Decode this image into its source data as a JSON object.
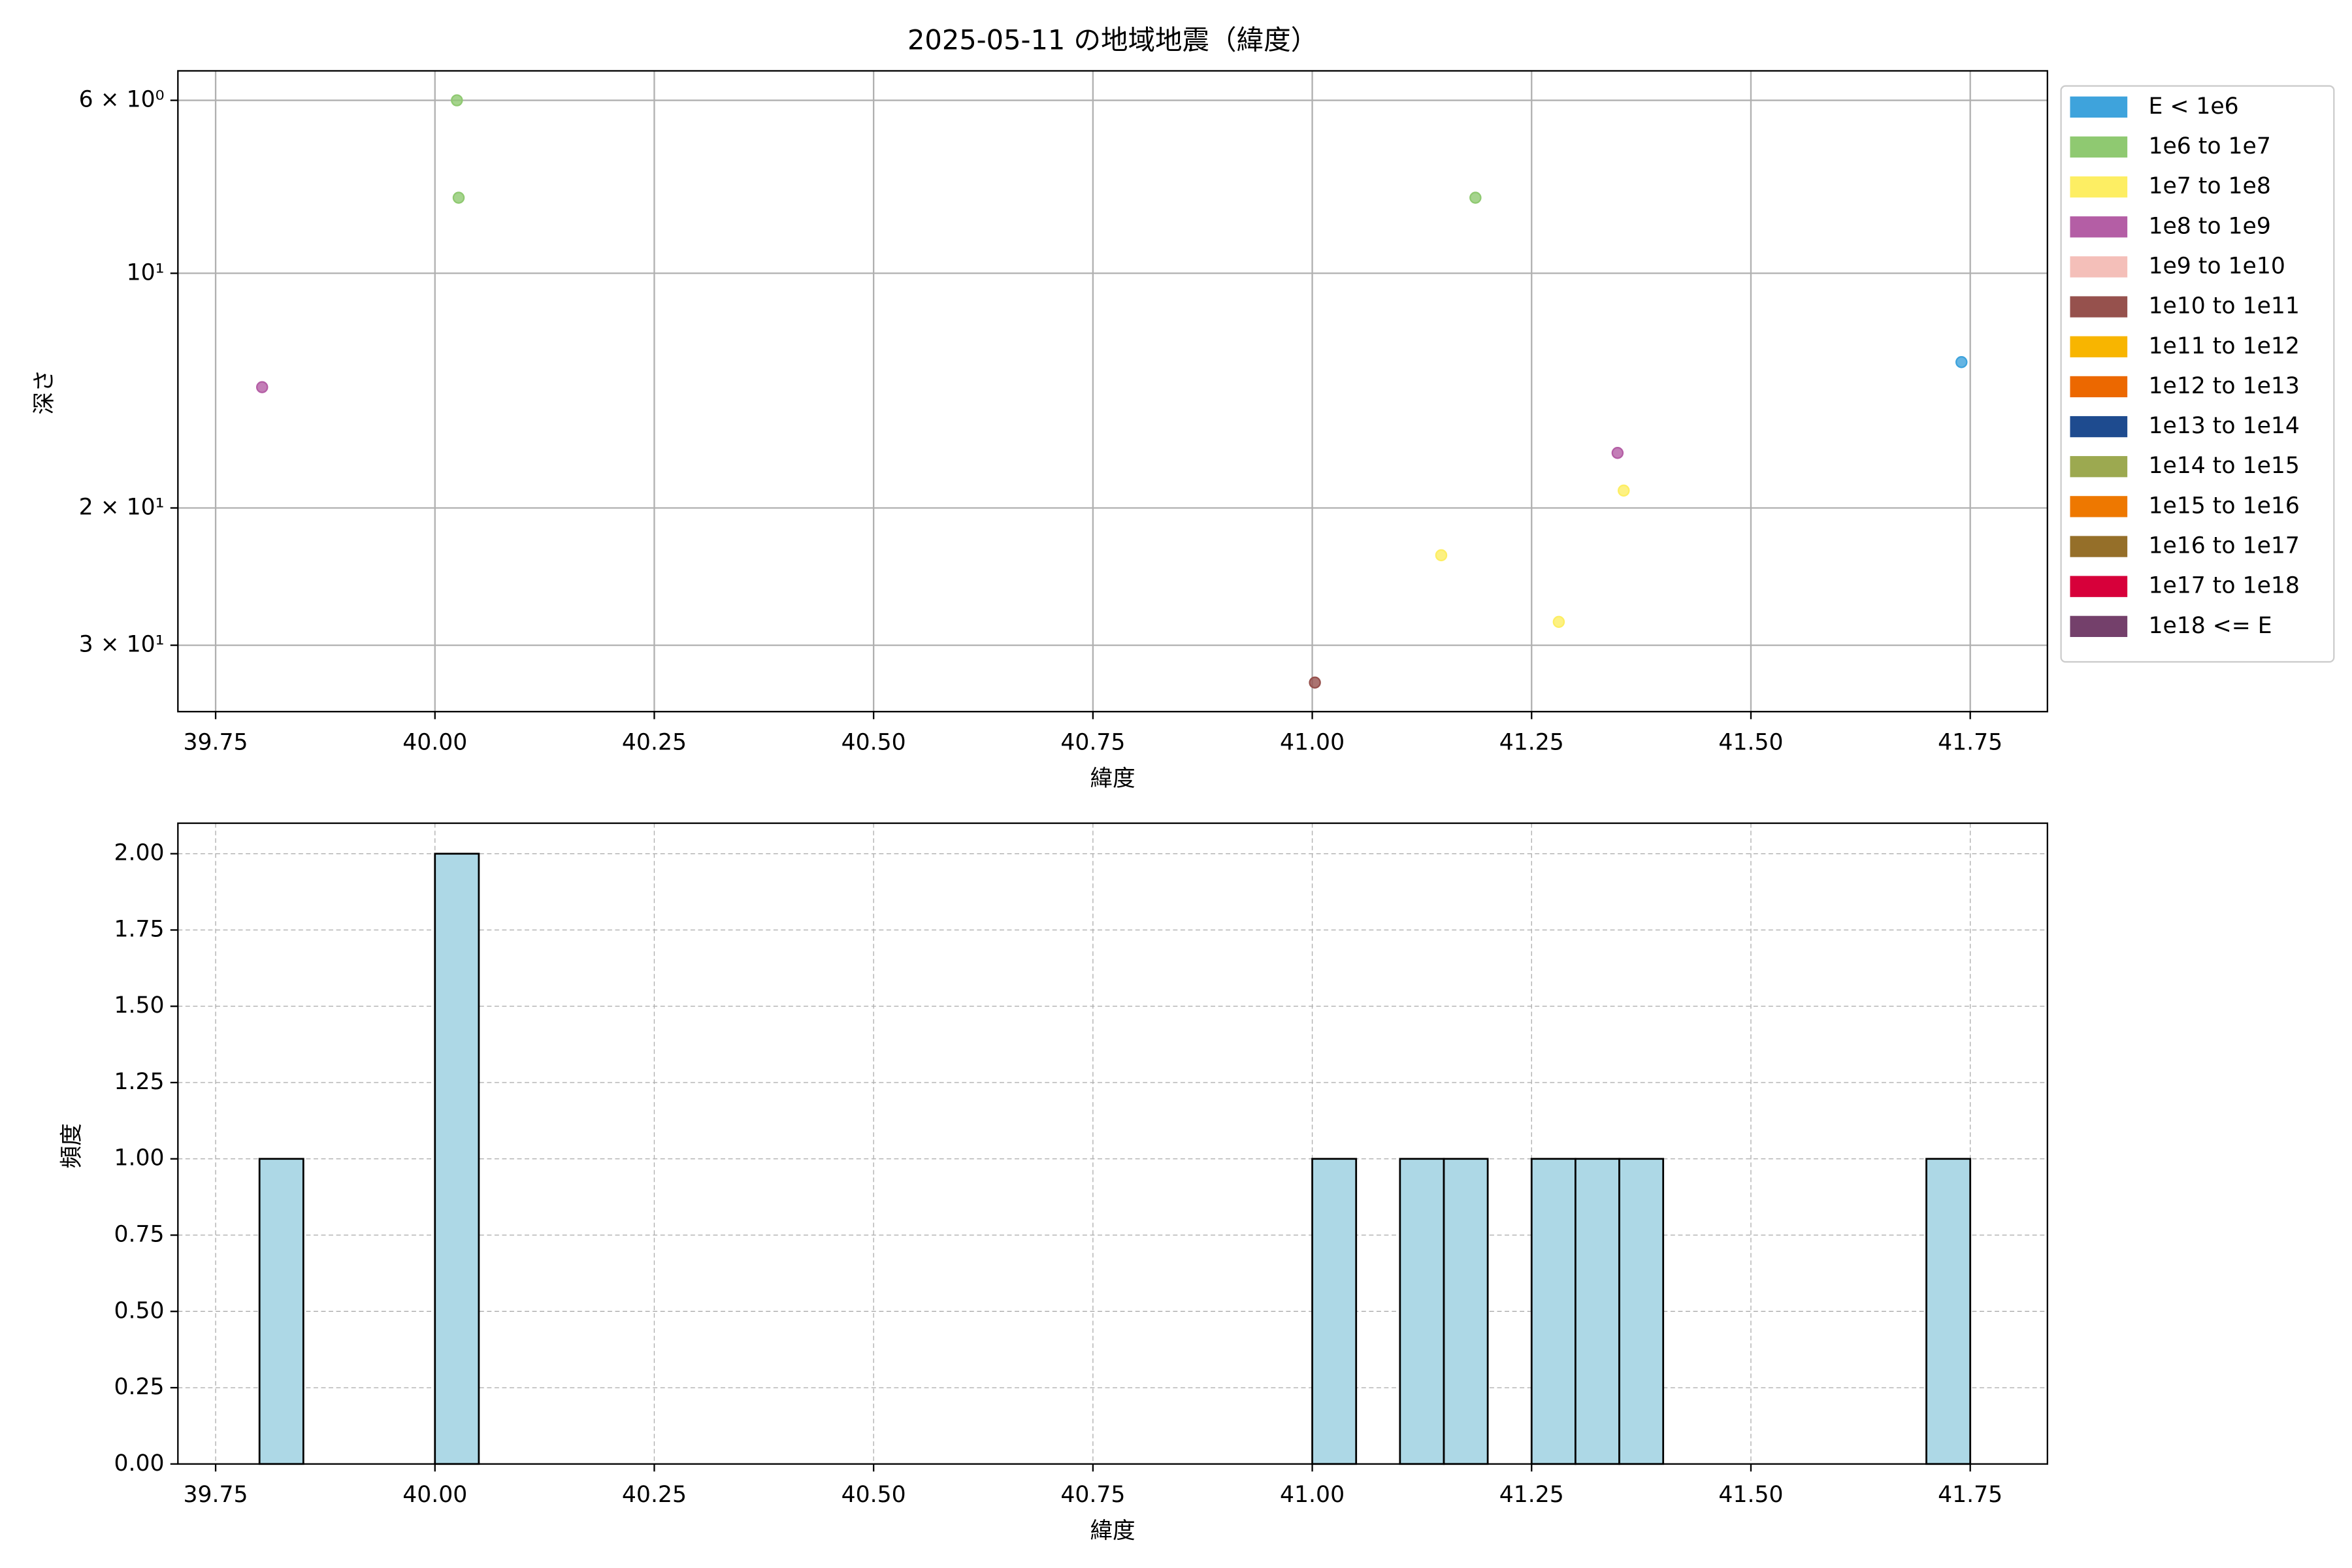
{
  "chart_data": [
    {
      "type": "scatter",
      "title": "2025-05-11 の地域地震（緯度）",
      "x_label": "緯度",
      "y_label": "深さ",
      "xlim": [
        39.707,
        41.838
      ],
      "ylim": [
        36.5,
        5.5
      ],
      "log_y": true,
      "grid": "solid",
      "legend": "outside right",
      "xticks": [
        39.75,
        {
          "value": 40,
          "label": "40.00"
        },
        40.25,
        {
          "value": 40.5,
          "label": "40.50"
        },
        40.75,
        {
          "value": 41,
          "label": "41.00"
        },
        41.25,
        {
          "value": 41.5,
          "label": "41.50"
        },
        41.75
      ],
      "yticks": [
        {
          "value": 6,
          "label": "6 × 10⁰"
        },
        {
          "value": 10,
          "label": "10¹"
        },
        {
          "value": 20,
          "label": "2 × 10¹"
        },
        {
          "value": 30,
          "label": "3 × 10¹"
        }
      ],
      "series": [
        {
          "name": "E < 1e6",
          "color": "#3ea3dc",
          "x": [
            41.74
          ],
          "y": [
            13
          ]
        },
        {
          "name": "1e6 to 1e7",
          "color": "#8fc971",
          "x": [
            40.025,
            40.027,
            41.186
          ],
          "y": [
            6,
            8,
            8
          ]
        },
        {
          "name": "1e7 to 1e8",
          "color": "#fdee63",
          "x": [
            41.355,
            41.147,
            41.281
          ],
          "y": [
            19,
            23,
            28
          ]
        },
        {
          "name": "1e8 to 1e9",
          "color": "#b45ea5",
          "x": [
            39.803,
            41.348
          ],
          "y": [
            14,
            17
          ]
        },
        {
          "name": "1e9 to 1e10",
          "color": "#f4bfb9",
          "x": [],
          "y": []
        },
        {
          "name": "1e10 to 1e11",
          "color": "#96514d",
          "x": [
            41.003
          ],
          "y": [
            33.5
          ]
        },
        {
          "name": "1e11 to 1e12",
          "color": "#f8b500",
          "x": [],
          "y": []
        },
        {
          "name": "1e12 to 1e13",
          "color": "#ec6800",
          "x": [],
          "y": []
        },
        {
          "name": "1e13 to 1e14",
          "color": "#1e4b8f",
          "x": [],
          "y": []
        },
        {
          "name": "1e14 to 1e15",
          "color": "#9ca950",
          "x": [],
          "y": []
        },
        {
          "name": "1e15 to 1e16",
          "color": "#ee7800",
          "x": [],
          "y": []
        },
        {
          "name": "1e16 to 1e17",
          "color": "#956f29",
          "x": [],
          "y": []
        },
        {
          "name": "1e17 to 1e18",
          "color": "#d7003a",
          "x": [],
          "y": []
        },
        {
          "name": "1e18 <= E",
          "color": "#74406b",
          "x": [],
          "y": []
        }
      ]
    },
    {
      "type": "histogram",
      "x_label": "緯度",
      "y_label": "頻度",
      "color": "#add8e6",
      "xlim": [
        39.707,
        41.838
      ],
      "ylim": [
        0,
        2.1
      ],
      "grid": "dashed",
      "xticks": [
        39.75,
        {
          "value": 40,
          "label": "40.00"
        },
        40.25,
        {
          "value": 40.5,
          "label": "40.50"
        },
        40.75,
        {
          "value": 41,
          "label": "41.00"
        },
        41.25,
        {
          "value": 41.5,
          "label": "41.50"
        },
        41.75
      ],
      "yticks": [
        {
          "value": 0,
          "label": "0.00"
        },
        0.25,
        {
          "value": 0.5,
          "label": "0.50"
        },
        0.75,
        {
          "value": 1,
          "label": "1.00"
        },
        1.25,
        {
          "value": 1.5,
          "label": "1.50"
        },
        1.75,
        {
          "value": 2,
          "label": "2.00"
        }
      ],
      "bins": [
        39.8,
        39.85,
        39.9,
        39.95,
        40,
        40.05,
        40.1,
        40.15,
        40.2,
        40.25,
        40.3,
        40.35,
        40.4,
        40.45,
        40.5,
        40.55,
        40.6,
        40.65,
        40.7,
        40.75,
        40.8,
        40.85,
        40.9,
        40.95,
        41,
        41.05,
        41.1,
        41.15,
        41.2,
        41.25,
        41.3,
        41.35,
        41.4,
        41.45,
        41.5,
        41.55,
        41.6,
        41.65,
        41.7,
        41.75
      ],
      "counts": [
        1,
        0,
        0,
        0,
        2,
        0,
        0,
        0,
        0,
        0,
        0,
        0,
        0,
        0,
        0,
        0,
        0,
        0,
        0,
        0,
        0,
        0,
        0,
        0,
        1,
        0,
        1,
        1,
        0,
        1,
        1,
        1,
        0,
        0,
        0,
        0,
        0,
        0,
        1
      ]
    }
  ]
}
